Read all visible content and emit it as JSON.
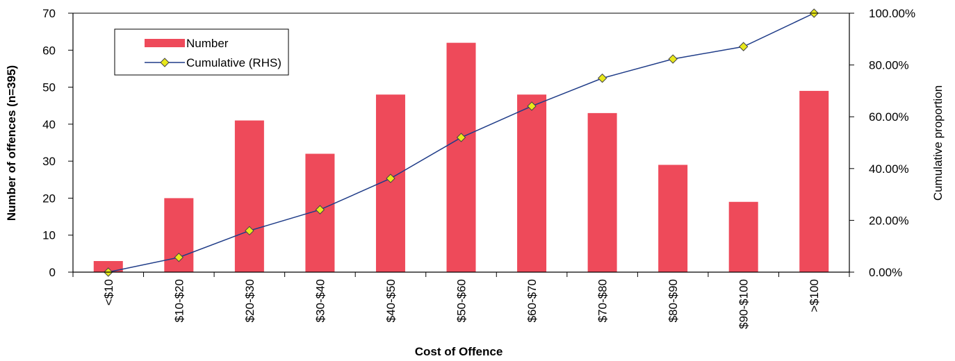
{
  "chart_data": {
    "type": "bar",
    "categories": [
      "<$10",
      "$10-$20",
      "$20-$30",
      "$30-$40",
      "$40-$50",
      "$50-$60",
      "$60-$70",
      "$70-$80",
      "$80-$90",
      "$90-$100",
      ">$100"
    ],
    "series": [
      {
        "name": "Number",
        "type": "bar",
        "axis": "left",
        "color": "#ee4a5a",
        "values": [
          3,
          20,
          41,
          32,
          48,
          62,
          48,
          43,
          29,
          19,
          49
        ]
      },
      {
        "name": "Cumulative (RHS)",
        "type": "line",
        "axis": "right",
        "color": "#1f3c88",
        "marker_color": "#e8e81a",
        "marker": "diamond",
        "values": [
          0.0,
          0.057,
          0.16,
          0.241,
          0.362,
          0.52,
          0.641,
          0.749,
          0.823,
          0.871,
          1.0
        ]
      }
    ],
    "xlabel": "Cost of Offence",
    "ylabel": "Number of offences (n=395)",
    "y2label": "Cumulative proportion",
    "ylim": [
      0,
      70
    ],
    "y2lim": [
      0,
      1.0
    ],
    "yticks": [
      "0",
      "10",
      "20",
      "30",
      "40",
      "50",
      "60",
      "70"
    ],
    "y2ticks": [
      "0.00%",
      "20.00%",
      "40.00%",
      "60.00%",
      "80.00%",
      "100.00%"
    ],
    "legend": {
      "position": "top-left",
      "entries": [
        "Number",
        "Cumulative (RHS)"
      ]
    },
    "grid": false
  }
}
